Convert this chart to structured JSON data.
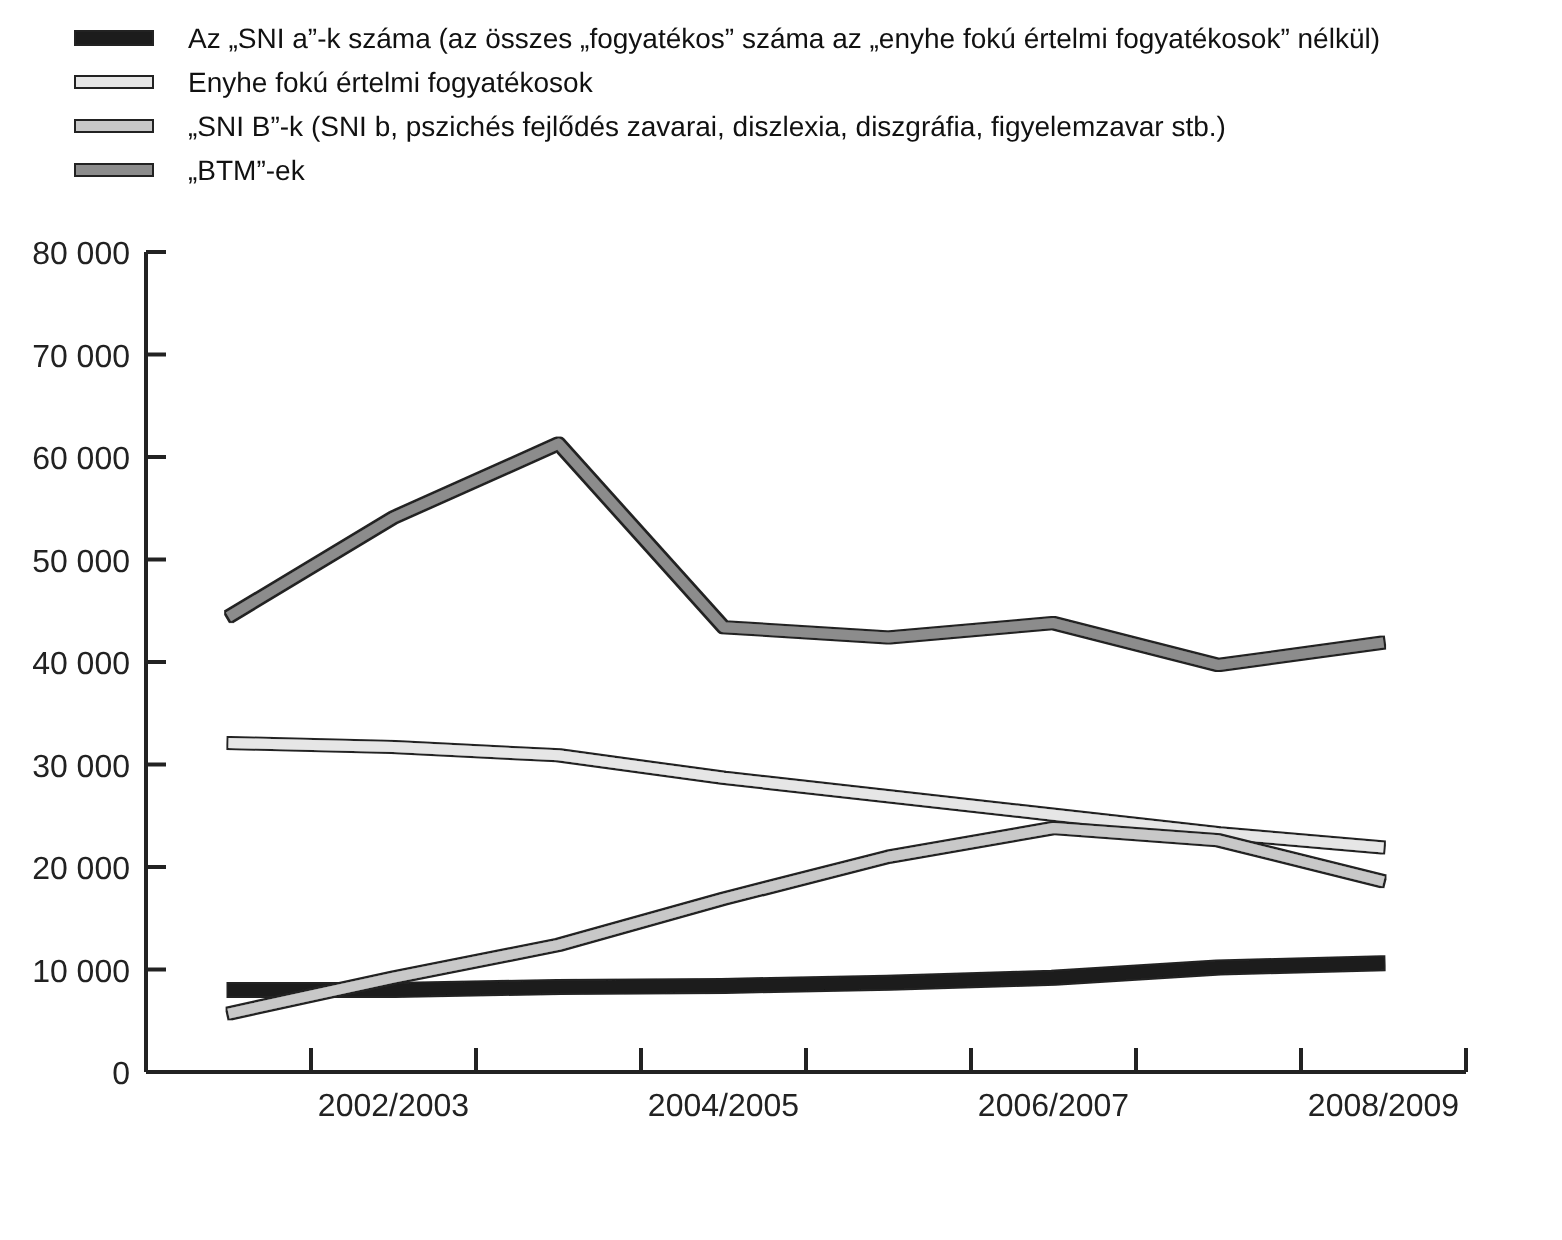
{
  "chart_data": {
    "type": "line",
    "categories": [
      null,
      "2002/2003",
      null,
      "2004/2005",
      null,
      "2006/2007",
      null,
      "2008/2009"
    ],
    "series": [
      {
        "name": "Az „SNI a”-k száma (az összes „fogyatékos” száma az „enyhe fokú értelmi fogyatékosok” nélkül)",
        "color": "#1a1a1a",
        "values": [
          8000,
          8000,
          8300,
          8400,
          8700,
          9200,
          10200,
          10600
        ]
      },
      {
        "name": "Enyhe fokú értelmi fogyatékosok",
        "color": "#e6e6e6",
        "values": [
          32100,
          31700,
          30900,
          28700,
          26900,
          25100,
          23300,
          21900
        ]
      },
      {
        "name": "„SNI B”-k (SNI b, pszichés fejlődés zavarai, diszlexia, diszgráfia, figyelemzavar stb.)",
        "color": "#c8c8c8",
        "values": [
          5700,
          9200,
          12400,
          16900,
          21000,
          23800,
          22600,
          18600
        ]
      },
      {
        "name": "„BTM”-ek",
        "color": "#8c8c8c",
        "values": [
          44400,
          54100,
          61300,
          43400,
          42400,
          43800,
          39700,
          41900
        ]
      }
    ],
    "ylim": [
      0,
      80000
    ],
    "yticks": [
      {
        "value": 0,
        "label": "0"
      },
      {
        "value": 10000,
        "label": "10 000"
      },
      {
        "value": 20000,
        "label": "20 000"
      },
      {
        "value": 30000,
        "label": "30 000"
      },
      {
        "value": 40000,
        "label": "40 000"
      },
      {
        "value": 50000,
        "label": "50 000"
      },
      {
        "value": 60000,
        "label": "60 000"
      },
      {
        "value": 70000,
        "label": "70 000"
      },
      {
        "value": 80000,
        "label": "80 000"
      }
    ],
    "legend": "top left",
    "marker": "none"
  }
}
